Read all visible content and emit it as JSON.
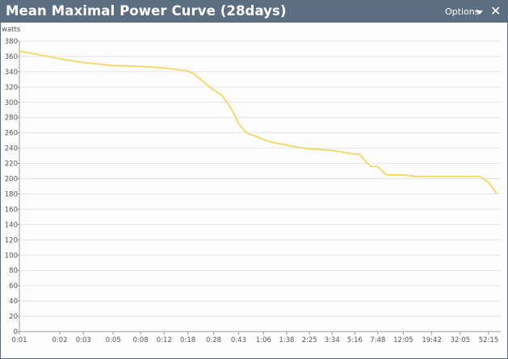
{
  "window": {
    "title": "Mean Maximal Power Curve (28days)",
    "options_label": "Options",
    "close_glyph": "✕"
  },
  "chart_data": {
    "type": "line",
    "ylabel": "watts",
    "ylim": [
      0,
      380
    ],
    "yticks": [
      0,
      20,
      40,
      60,
      80,
      100,
      120,
      140,
      160,
      180,
      200,
      220,
      240,
      260,
      280,
      300,
      320,
      340,
      360,
      380
    ],
    "xtick_labels": [
      "0:01",
      "0:02",
      "0:03",
      "0:05",
      "0:08",
      "0:12",
      "0:18",
      "0:28",
      "0:43",
      "1:06",
      "1:38",
      "2:25",
      "3:34",
      "5:16",
      "7:48",
      "12:05",
      "19:42",
      "32:05",
      "52:15"
    ],
    "x_scale": "log",
    "grid": true,
    "line_color": "#f5d663",
    "series": [
      {
        "x": [
          "0:01",
          "0:02",
          "0:03",
          "0:05",
          "0:08",
          "0:12",
          "0:18",
          "0:20",
          "0:22",
          "0:25",
          "0:28",
          "0:32",
          "0:36",
          "0:40",
          "0:43",
          "0:48",
          "0:52",
          "0:57",
          "1:01",
          "1:06",
          "1:15",
          "1:25",
          "1:38",
          "2:00",
          "2:25",
          "3:00",
          "3:34",
          "4:15",
          "5:16",
          "5:40",
          "6:00",
          "6:30",
          "7:00",
          "7:48",
          "9:00",
          "10:00",
          "12:05",
          "15:00",
          "19:42",
          "25:00",
          "32:05",
          "40:00",
          "45:00",
          "52:15",
          "60:00"
        ],
        "values": [
          367,
          357,
          352,
          348,
          347,
          345,
          341,
          337,
          331,
          323,
          316,
          310,
          298,
          284,
          272,
          262,
          258,
          256,
          254,
          251,
          248,
          246,
          244,
          241,
          239,
          238,
          237,
          235,
          232,
          232,
          228,
          220,
          216,
          216,
          205,
          205,
          205,
          203,
          203,
          203,
          203,
          203,
          203,
          195,
          181
        ]
      }
    ]
  }
}
